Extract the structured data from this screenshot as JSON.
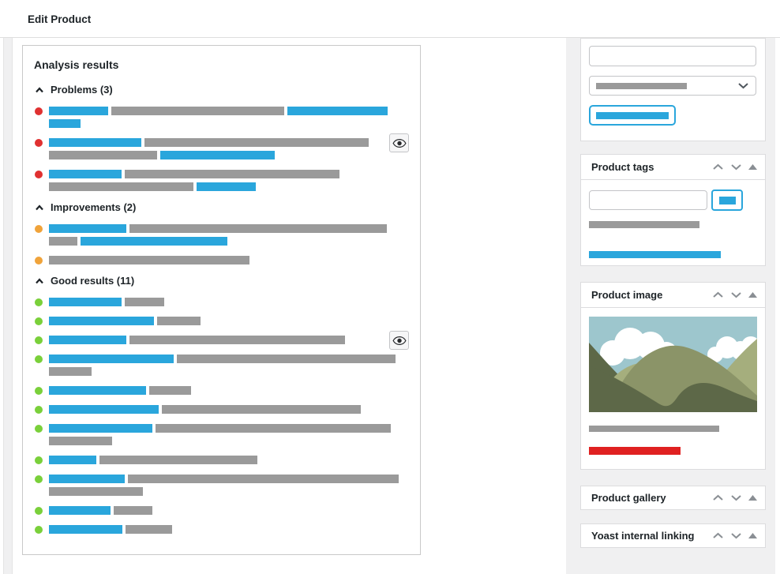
{
  "header": {
    "title": "Edit Product"
  },
  "colors": {
    "blue": "#2aa6dc",
    "bar_gray": "#9a9a9a",
    "problem_red": "#e03131",
    "improvement_orange": "#f0a33a",
    "good_green": "#7ad03a",
    "red_bar": "#e02121",
    "icon_gray": "#8a8f94",
    "sidebar_bg": "#f0f0f1",
    "card_border": "#dcdcde",
    "sky": "#9dc6cd",
    "cloud": "#ffffff",
    "hill_light": "#a5ae7d",
    "hill_mid": "#8b9468",
    "hill_dark": "#5d6848"
  },
  "analysis": {
    "title": "Analysis results",
    "sections": [
      {
        "label": "Problems (3)",
        "dot": "problem_red",
        "items": [
          {
            "eye": false,
            "lines": [
              [
                [
                  "b",
                  75
                ],
                [
                  "g",
                  219
                ],
                [
                  "b",
                  127
                ]
              ],
              [
                [
                  "b",
                  40
                ]
              ]
            ]
          },
          {
            "eye": true,
            "lines": [
              [
                [
                  "b",
                  117
                ],
                [
                  "g",
                  284
                ]
              ],
              [
                [
                  "g",
                  137
                ],
                [
                  "b",
                  145
                ]
              ]
            ]
          },
          {
            "eye": false,
            "lines": [
              [
                [
                  "b",
                  92
                ],
                [
                  "g",
                  272
                ]
              ],
              [
                [
                  "g",
                  183
                ],
                [
                  "b",
                  75
                ]
              ]
            ]
          }
        ]
      },
      {
        "label": "Improvements (2)",
        "dot": "improvement_orange",
        "items": [
          {
            "eye": false,
            "lines": [
              [
                [
                  "b",
                  98
                ],
                [
                  "g",
                  326
                ]
              ],
              [
                [
                  "g",
                  36
                ],
                [
                  "b",
                  186
                ]
              ]
            ]
          },
          {
            "eye": false,
            "lines": [
              [
                [
                  "g",
                  254
                ]
              ]
            ]
          }
        ]
      },
      {
        "label": "Good results (11)",
        "dot": "good_green",
        "items": [
          {
            "eye": false,
            "lines": [
              [
                [
                  "b",
                  92
                ],
                [
                  "g",
                  50
                ]
              ]
            ]
          },
          {
            "eye": false,
            "lines": [
              [
                [
                  "b",
                  133
                ],
                [
                  "g",
                  55
                ]
              ]
            ]
          },
          {
            "eye": true,
            "lines": [
              [
                [
                  "b",
                  98
                ],
                [
                  "g",
                  273
                ]
              ]
            ]
          },
          {
            "eye": false,
            "lines": [
              [
                [
                  "b",
                  158
                ],
                [
                  "g",
                  277
                ]
              ],
              [
                [
                  "g",
                  54
                ]
              ]
            ]
          },
          {
            "eye": false,
            "lines": [
              [
                [
                  "b",
                  123
                ],
                [
                  "g",
                  53
                ]
              ]
            ]
          },
          {
            "eye": false,
            "lines": [
              [
                [
                  "b",
                  139
                ],
                [
                  "g",
                  252
                ]
              ]
            ]
          },
          {
            "eye": false,
            "lines": [
              [
                [
                  "b",
                  131
                ],
                [
                  "g",
                  298
                ]
              ],
              [
                [
                  "g",
                  80
                ]
              ]
            ]
          },
          {
            "eye": false,
            "lines": [
              [
                [
                  "b",
                  60
                ],
                [
                  "g",
                  200
                ]
              ]
            ]
          },
          {
            "eye": false,
            "lines": [
              [
                [
                  "b",
                  96
                ],
                [
                  "g",
                  343
                ]
              ],
              [
                [
                  "g",
                  119
                ]
              ]
            ]
          },
          {
            "eye": false,
            "lines": [
              [
                [
                  "b",
                  78
                ],
                [
                  "g",
                  49
                ]
              ]
            ]
          },
          {
            "eye": false,
            "lines": [
              [
                [
                  "b",
                  93
                ],
                [
                  "g",
                  59
                ]
              ]
            ]
          }
        ]
      }
    ]
  },
  "sidebar": {
    "publish": {
      "input_value": "",
      "select_bar_w": 115,
      "button_bar_w": 92
    },
    "tags": {
      "title": "Product tags",
      "input_value": "",
      "button_bar_w": 21,
      "gray_bar_w": 140,
      "blue_bar_w": 167
    },
    "image": {
      "title": "Product image",
      "gray_bar_w": 165,
      "red_bar_w": 116
    },
    "gallery": {
      "title": "Product gallery"
    },
    "linking": {
      "title": "Yoast internal linking"
    }
  }
}
